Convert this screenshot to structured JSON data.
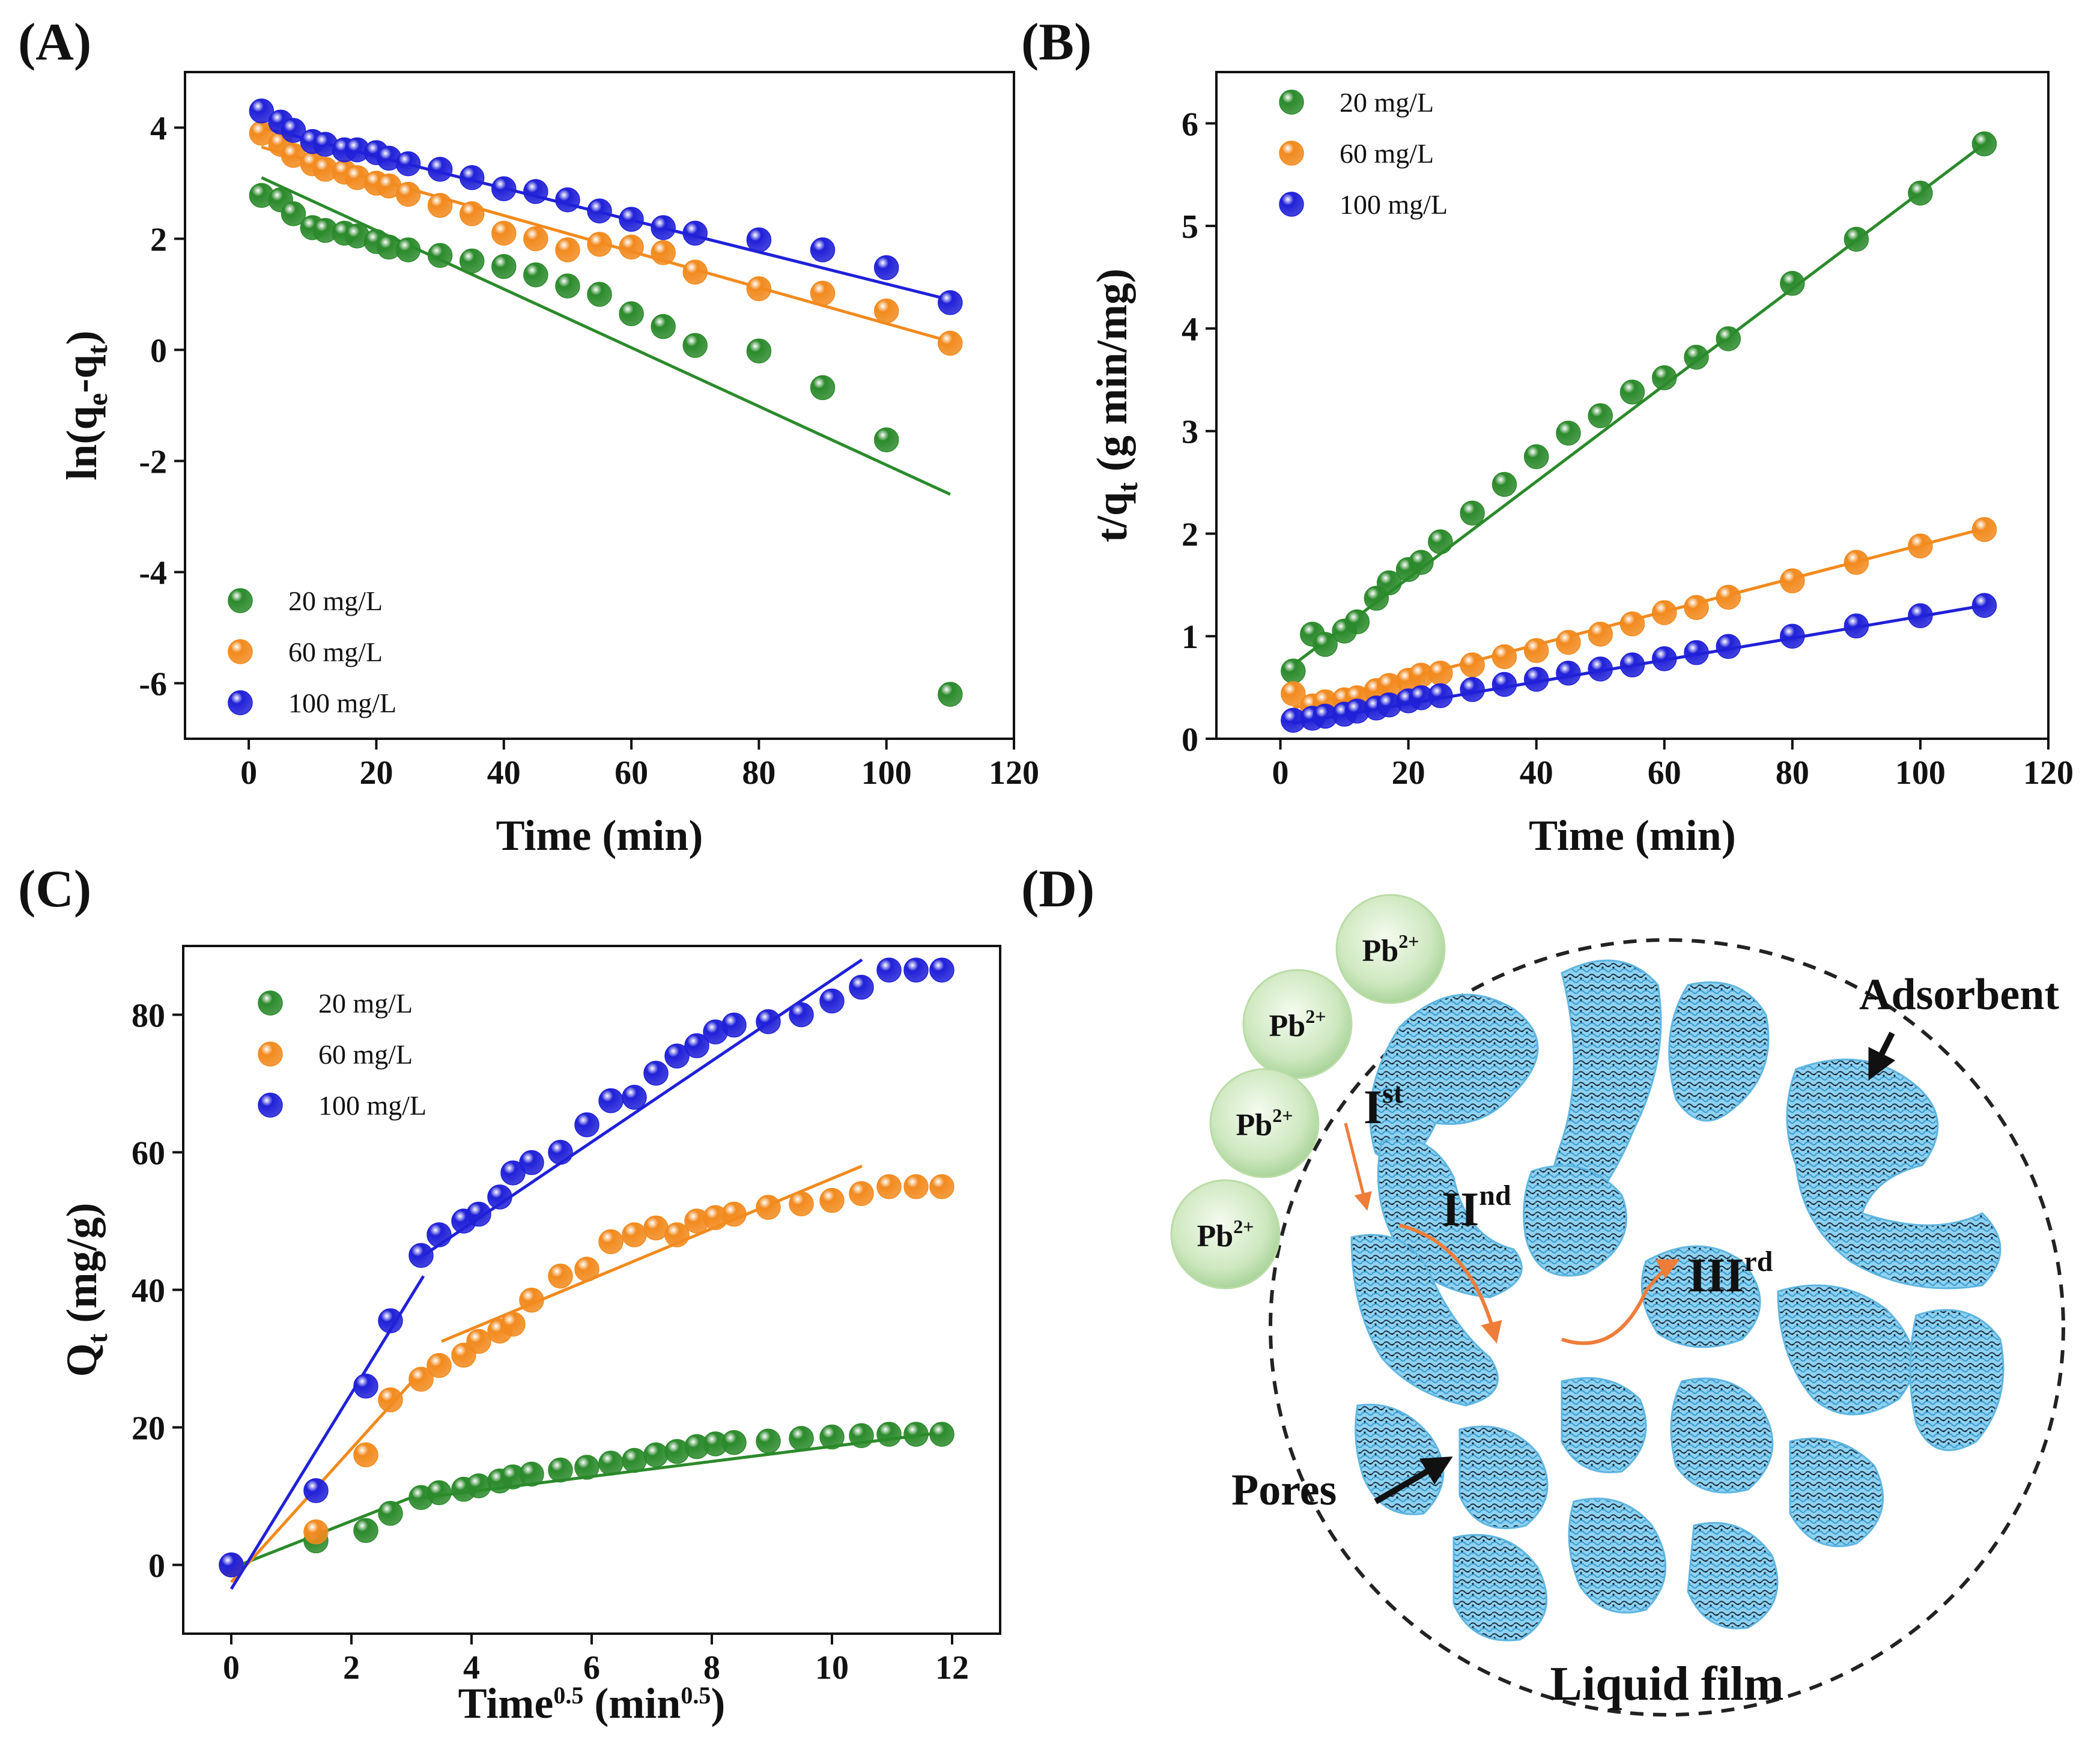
{
  "panels": {
    "A": "(A)",
    "B": "(B)",
    "C": "(C)",
    "D": "(D)"
  },
  "colors": {
    "green": "#2b8a2b",
    "orange": "#f28a1e",
    "blue": "#2020d8",
    "pore_fill": "#7ec8ec",
    "pore_dark": "#1a2a3a",
    "arrow": "#ee7d3a",
    "ion_fill": "#cfe8c0"
  },
  "chart_data": [
    {
      "id": "A",
      "type": "scatter",
      "title": "",
      "xlabel": "Time (min)",
      "ylabel": "ln(q_e-q_t)",
      "xlim": [
        -10,
        120
      ],
      "ylim": [
        -7,
        5
      ],
      "xticks": [
        0,
        20,
        40,
        60,
        80,
        100,
        120
      ],
      "yticks": [
        -6,
        -4,
        -2,
        0,
        2,
        4
      ],
      "x": [
        2,
        5,
        7,
        10,
        12,
        15,
        17,
        20,
        22,
        25,
        30,
        35,
        40,
        45,
        50,
        55,
        60,
        65,
        70,
        80,
        90,
        100,
        110
      ],
      "legend": "bottom-left",
      "series": [
        {
          "name": "20 mg/L",
          "color": "green",
          "values": [
            2.78,
            2.7,
            2.45,
            2.2,
            2.15,
            2.1,
            2.05,
            1.95,
            1.85,
            1.8,
            1.7,
            1.6,
            1.5,
            1.35,
            1.15,
            1.0,
            0.65,
            0.42,
            0.08,
            -0.02,
            -0.68,
            -1.62,
            -6.2
          ],
          "fit": [
            [
              2,
              3.1
            ],
            [
              110,
              -2.6
            ]
          ]
        },
        {
          "name": "60 mg/L",
          "color": "orange",
          "values": [
            3.9,
            3.7,
            3.5,
            3.35,
            3.25,
            3.2,
            3.1,
            3.0,
            2.95,
            2.8,
            2.6,
            2.45,
            2.1,
            2.0,
            1.8,
            1.9,
            1.85,
            1.75,
            1.4,
            1.1,
            1.02,
            0.7,
            0.12
          ],
          "fit": [
            [
              2,
              3.65
            ],
            [
              110,
              0.15
            ]
          ]
        },
        {
          "name": "100 mg/L",
          "color": "blue",
          "values": [
            4.3,
            4.1,
            3.95,
            3.75,
            3.7,
            3.6,
            3.6,
            3.55,
            3.45,
            3.35,
            3.25,
            3.1,
            2.9,
            2.85,
            2.7,
            2.5,
            2.35,
            2.2,
            2.1,
            1.98,
            1.8,
            1.48,
            0.85
          ],
          "fit": [
            [
              2,
              4.0
            ],
            [
              110,
              0.9
            ]
          ]
        }
      ]
    },
    {
      "id": "B",
      "type": "scatter",
      "title": "",
      "xlabel": "Time (min)",
      "ylabel": "t/q_t (g min/mg)",
      "xlim": [
        -10,
        120
      ],
      "ylim": [
        0,
        6.5
      ],
      "xticks": [
        0,
        20,
        40,
        60,
        80,
        100,
        120
      ],
      "yticks": [
        0,
        1,
        2,
        3,
        4,
        5,
        6
      ],
      "x": [
        2,
        5,
        7,
        10,
        12,
        15,
        17,
        20,
        22,
        25,
        30,
        35,
        40,
        45,
        50,
        55,
        60,
        65,
        70,
        80,
        90,
        100,
        110
      ],
      "legend": "top-left",
      "series": [
        {
          "name": "20 mg/L",
          "color": "green",
          "values": [
            0.66,
            1.02,
            0.92,
            1.05,
            1.14,
            1.37,
            1.52,
            1.65,
            1.72,
            1.92,
            2.2,
            2.48,
            2.75,
            2.98,
            3.15,
            3.38,
            3.52,
            3.72,
            3.9,
            4.44,
            4.87,
            5.32,
            5.8
          ],
          "fit": [
            [
              2,
              0.72
            ],
            [
              110,
              5.8
            ]
          ]
        },
        {
          "name": "60 mg/L",
          "color": "orange",
          "values": [
            0.44,
            0.32,
            0.36,
            0.38,
            0.4,
            0.47,
            0.52,
            0.57,
            0.62,
            0.64,
            0.72,
            0.8,
            0.86,
            0.94,
            1.02,
            1.12,
            1.23,
            1.28,
            1.38,
            1.54,
            1.72,
            1.88,
            2.04
          ],
          "fit": [
            [
              2,
              0.3
            ],
            [
              110,
              2.05
            ]
          ]
        },
        {
          "name": "100 mg/L",
          "color": "blue",
          "values": [
            0.18,
            0.2,
            0.22,
            0.24,
            0.27,
            0.3,
            0.33,
            0.37,
            0.4,
            0.42,
            0.48,
            0.53,
            0.58,
            0.64,
            0.68,
            0.72,
            0.78,
            0.84,
            0.9,
            1.0,
            1.1,
            1.2,
            1.3
          ],
          "fit": [
            [
              2,
              0.15
            ],
            [
              110,
              1.3
            ]
          ]
        }
      ]
    },
    {
      "id": "C",
      "type": "scatter",
      "title": "",
      "xlabel": "Time^0.5 (min^0.5)",
      "ylabel": "Q_t (mg/g)",
      "xlim": [
        -0.8,
        12.8
      ],
      "ylim": [
        -10,
        90
      ],
      "xticks": [
        0,
        2,
        4,
        6,
        8,
        10,
        12
      ],
      "yticks": [
        0,
        20,
        40,
        60,
        80
      ],
      "x": [
        0,
        1.41,
        2.24,
        2.65,
        3.16,
        3.46,
        3.87,
        4.12,
        4.47,
        4.69,
        5.0,
        5.48,
        5.92,
        6.32,
        6.71,
        7.07,
        7.42,
        7.75,
        8.06,
        8.37,
        8.94,
        9.49,
        10.0,
        10.49,
        10.95,
        11.4,
        11.83
      ],
      "legend": "top-left",
      "series": [
        {
          "name": "20 mg/L",
          "color": "green",
          "values": [
            0,
            3.5,
            5.0,
            7.5,
            9.8,
            10.5,
            11.0,
            11.5,
            12.2,
            12.8,
            13.2,
            13.8,
            14.2,
            14.8,
            15.2,
            16.0,
            16.5,
            17.2,
            17.6,
            17.8,
            18.0,
            18.4,
            18.6,
            18.8,
            19.0,
            19.0,
            19.0
          ],
          "fits": [
            [
              [
                0,
                -0.5
              ],
              [
                3.2,
                10.5
              ]
            ],
            [
              [
                3.2,
                9.8
              ],
              [
                11.8,
                19.2
              ]
            ]
          ]
        },
        {
          "name": "60 mg/L",
          "color": "orange",
          "values": [
            0,
            4.8,
            16.0,
            24.0,
            27.0,
            29.0,
            30.5,
            32.5,
            34.0,
            35.0,
            38.5,
            42.0,
            43.0,
            47.0,
            48.0,
            49.0,
            48.0,
            50.0,
            50.5,
            51.0,
            52.0,
            52.5,
            53.0,
            54.0,
            55.0,
            55.0,
            55.0
          ],
          "fits": [
            [
              [
                0,
                -2.5
              ],
              [
                3.2,
                28.5
              ]
            ],
            [
              [
                3.5,
                32.5
              ],
              [
                10.5,
                58.0
              ]
            ]
          ]
        },
        {
          "name": "100 mg/L",
          "color": "blue",
          "values": [
            0,
            10.8,
            26.0,
            35.5,
            45.0,
            48.0,
            50.0,
            51.0,
            53.5,
            57.0,
            58.5,
            60.0,
            64.0,
            67.5,
            68.0,
            71.5,
            74.0,
            75.5,
            77.5,
            78.5,
            79.0,
            80.0,
            82.0,
            84.0,
            86.5,
            86.5,
            86.5
          ],
          "fits": [
            [
              [
                0,
                -3.5
              ],
              [
                3.2,
                42.0
              ]
            ],
            [
              [
                3.2,
                45.0
              ],
              [
                10.5,
                88.0
              ]
            ]
          ]
        }
      ]
    }
  ],
  "diagram": {
    "ions": [
      "Pb2+",
      "Pb2+",
      "Pb2+",
      "Pb2+"
    ],
    "ion_symbol": "Pb",
    "ion_charge": "2+",
    "adsorbent_label": "Adsorbent",
    "pores_label": "Pores",
    "liquid_film_label": "Liquid film",
    "stage1": "I",
    "stage1_sup": "st",
    "stage2": "II",
    "stage2_sup": "nd",
    "stage3": "III",
    "stage3_sup": "rd"
  }
}
